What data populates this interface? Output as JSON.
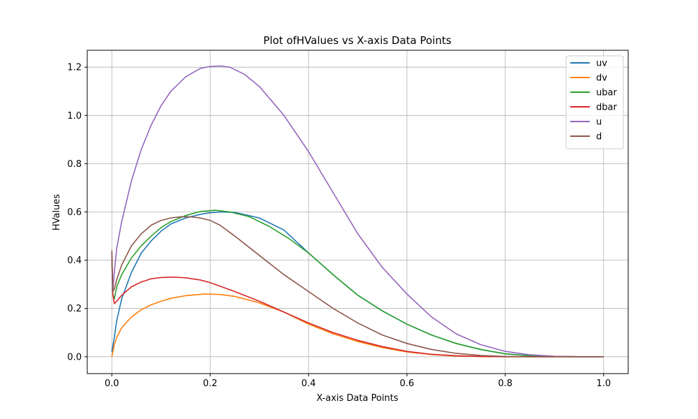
{
  "chart_data": {
    "type": "line",
    "title": "Plot ofHValues vs X-axis Data Points",
    "xlabel": "X-axis Data Points",
    "ylabel": "HValues",
    "xlim": [
      -0.05,
      1.05
    ],
    "ylim": [
      -0.07,
      1.27
    ],
    "xticks": [
      0.0,
      0.2,
      0.4,
      0.6,
      0.8,
      1.0
    ],
    "xtick_labels": [
      "0.0",
      "0.2",
      "0.4",
      "0.6",
      "0.8",
      "1.0"
    ],
    "yticks": [
      0.0,
      0.2,
      0.4,
      0.6,
      0.8,
      1.0,
      1.2
    ],
    "ytick_labels": [
      "0.0",
      "0.2",
      "0.4",
      "0.6",
      "0.8",
      "1.0",
      "1.2"
    ],
    "grid": true,
    "legend_position": "top-right",
    "series": [
      {
        "name": "uv",
        "color": "#1f77b4",
        "x": [
          0.0,
          0.005,
          0.01,
          0.02,
          0.04,
          0.06,
          0.08,
          0.1,
          0.12,
          0.15,
          0.18,
          0.2,
          0.22,
          0.25,
          0.3,
          0.35,
          0.4,
          0.45,
          0.5,
          0.55,
          0.6,
          0.65,
          0.7,
          0.75,
          0.8,
          0.85,
          0.9,
          0.95,
          1.0
        ],
        "y": [
          0.02,
          0.08,
          0.15,
          0.24,
          0.35,
          0.43,
          0.48,
          0.52,
          0.55,
          0.575,
          0.59,
          0.597,
          0.6,
          0.598,
          0.575,
          0.525,
          0.43,
          0.34,
          0.255,
          0.19,
          0.135,
          0.09,
          0.055,
          0.03,
          0.012,
          0.004,
          0.001,
          0.0,
          0.0
        ]
      },
      {
        "name": "dv",
        "color": "#ff7f0e",
        "x": [
          0.0,
          0.005,
          0.01,
          0.02,
          0.04,
          0.06,
          0.08,
          0.1,
          0.12,
          0.15,
          0.19,
          0.22,
          0.25,
          0.3,
          0.35,
          0.4,
          0.45,
          0.5,
          0.55,
          0.6,
          0.65,
          0.7,
          0.75,
          0.8,
          0.85,
          0.9,
          1.0
        ],
        "y": [
          0.0,
          0.05,
          0.08,
          0.12,
          0.165,
          0.195,
          0.215,
          0.23,
          0.242,
          0.253,
          0.26,
          0.258,
          0.25,
          0.223,
          0.185,
          0.135,
          0.095,
          0.063,
          0.038,
          0.02,
          0.009,
          0.003,
          0.001,
          0.0,
          0.0,
          0.0,
          0.0
        ]
      },
      {
        "name": "ubar",
        "color": "#2ca02c",
        "x": [
          0.0,
          0.002,
          0.005,
          0.01,
          0.02,
          0.04,
          0.06,
          0.08,
          0.1,
          0.12,
          0.15,
          0.18,
          0.21,
          0.24,
          0.28,
          0.32,
          0.36,
          0.4,
          0.45,
          0.5,
          0.55,
          0.6,
          0.65,
          0.7,
          0.75,
          0.8,
          0.85,
          0.9,
          0.95,
          1.0
        ],
        "y": [
          0.4,
          0.26,
          0.24,
          0.29,
          0.34,
          0.41,
          0.46,
          0.5,
          0.535,
          0.56,
          0.585,
          0.602,
          0.607,
          0.6,
          0.58,
          0.54,
          0.49,
          0.43,
          0.34,
          0.255,
          0.19,
          0.135,
          0.09,
          0.055,
          0.03,
          0.012,
          0.004,
          0.001,
          0.0,
          0.0
        ]
      },
      {
        "name": "dbar",
        "color": "#d62728",
        "x": [
          0.0,
          0.002,
          0.005,
          0.01,
          0.02,
          0.04,
          0.06,
          0.08,
          0.1,
          0.125,
          0.15,
          0.18,
          0.2,
          0.25,
          0.3,
          0.35,
          0.4,
          0.45,
          0.5,
          0.55,
          0.6,
          0.65,
          0.7,
          0.75,
          0.8,
          0.85,
          1.0
        ],
        "y": [
          0.42,
          0.26,
          0.22,
          0.23,
          0.255,
          0.29,
          0.31,
          0.323,
          0.328,
          0.33,
          0.327,
          0.318,
          0.307,
          0.27,
          0.23,
          0.185,
          0.14,
          0.1,
          0.068,
          0.042,
          0.022,
          0.01,
          0.004,
          0.001,
          0.0,
          0.0,
          0.0
        ]
      },
      {
        "name": "u",
        "color": "#9467bd",
        "x": [
          0.0,
          0.002,
          0.005,
          0.01,
          0.02,
          0.04,
          0.06,
          0.08,
          0.1,
          0.12,
          0.15,
          0.18,
          0.2,
          0.22,
          0.24,
          0.27,
          0.3,
          0.35,
          0.4,
          0.45,
          0.5,
          0.55,
          0.6,
          0.65,
          0.7,
          0.75,
          0.8,
          0.85,
          0.9,
          0.95,
          1.0
        ],
        "y": [
          0.43,
          0.27,
          0.35,
          0.45,
          0.56,
          0.73,
          0.86,
          0.96,
          1.04,
          1.1,
          1.16,
          1.195,
          1.203,
          1.205,
          1.2,
          1.17,
          1.12,
          1.0,
          0.85,
          0.68,
          0.51,
          0.37,
          0.26,
          0.165,
          0.095,
          0.05,
          0.022,
          0.008,
          0.002,
          0.0,
          0.0
        ]
      },
      {
        "name": "d",
        "color": "#8c564b",
        "x": [
          0.0,
          0.002,
          0.005,
          0.01,
          0.02,
          0.04,
          0.06,
          0.08,
          0.1,
          0.12,
          0.14,
          0.16,
          0.18,
          0.2,
          0.22,
          0.25,
          0.3,
          0.35,
          0.4,
          0.45,
          0.5,
          0.55,
          0.6,
          0.65,
          0.7,
          0.75,
          0.8,
          0.85,
          0.9,
          1.0
        ],
        "y": [
          0.44,
          0.27,
          0.28,
          0.32,
          0.38,
          0.46,
          0.51,
          0.545,
          0.565,
          0.575,
          0.58,
          0.58,
          0.575,
          0.565,
          0.545,
          0.5,
          0.42,
          0.34,
          0.27,
          0.2,
          0.14,
          0.09,
          0.055,
          0.03,
          0.014,
          0.005,
          0.001,
          0.0,
          0.0,
          0.0
        ]
      }
    ]
  }
}
